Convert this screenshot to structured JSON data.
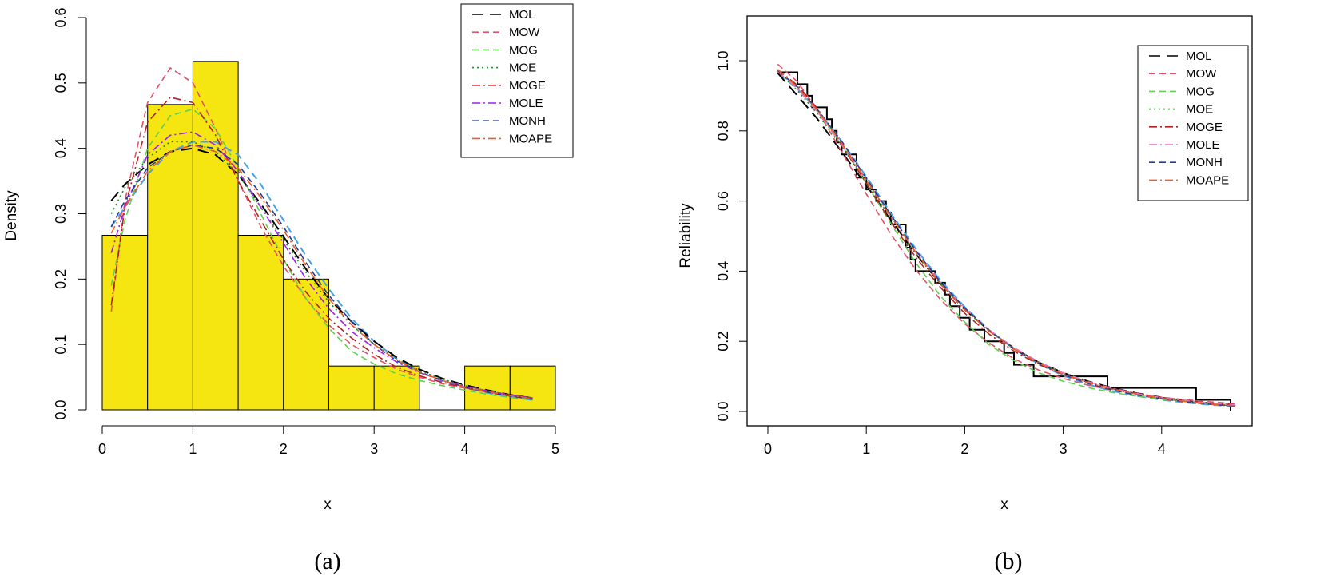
{
  "chart_data": [
    {
      "type": "histogram+line",
      "caption": "(a)",
      "xlabel": "x",
      "ylabel": "Density",
      "xlim": [
        0,
        5
      ],
      "ylim": [
        0,
        0.6
      ],
      "xticks": [
        "0",
        "1",
        "2",
        "3",
        "4",
        "5"
      ],
      "yticks": [
        "0.0",
        "0.1",
        "0.2",
        "0.3",
        "0.4",
        "0.5",
        "0.6"
      ],
      "bar_color": "#f5e612",
      "bins": [
        {
          "x0": 0.0,
          "x1": 0.5,
          "value": 0.267
        },
        {
          "x0": 0.5,
          "x1": 1.0,
          "value": 0.467
        },
        {
          "x0": 1.0,
          "x1": 1.5,
          "value": 0.533
        },
        {
          "x0": 1.5,
          "x1": 2.0,
          "value": 0.267
        },
        {
          "x0": 2.0,
          "x1": 2.5,
          "value": 0.2
        },
        {
          "x0": 2.5,
          "x1": 3.0,
          "value": 0.067
        },
        {
          "x0": 3.0,
          "x1": 3.5,
          "value": 0.067
        },
        {
          "x0": 3.5,
          "x1": 4.0,
          "value": 0.0
        },
        {
          "x0": 4.0,
          "x1": 4.5,
          "value": 0.067
        },
        {
          "x0": 4.5,
          "x1": 5.0,
          "value": 0.067
        }
      ],
      "x": [
        0.1,
        0.25,
        0.5,
        0.75,
        1.0,
        1.25,
        1.5,
        1.75,
        2.0,
        2.25,
        2.5,
        2.75,
        3.0,
        3.25,
        3.5,
        3.75,
        4.0,
        4.25,
        4.5,
        4.75
      ],
      "series": [
        {
          "name": "MOL",
          "color": "#000000",
          "dash": "14 8",
          "values": [
            0.32,
            0.345,
            0.375,
            0.395,
            0.4,
            0.39,
            0.36,
            0.315,
            0.265,
            0.215,
            0.17,
            0.135,
            0.105,
            0.08,
            0.062,
            0.048,
            0.038,
            0.03,
            0.023,
            0.018
          ]
        },
        {
          "name": "MOW",
          "color": "#df536b",
          "dash": "8 5",
          "values": [
            0.15,
            0.32,
            0.47,
            0.523,
            0.5,
            0.43,
            0.35,
            0.28,
            0.22,
            0.17,
            0.13,
            0.1,
            0.08,
            0.062,
            0.05,
            0.04,
            0.033,
            0.027,
            0.022,
            0.018
          ]
        },
        {
          "name": "MOG",
          "color": "#61d04f",
          "dash": "8 5",
          "values": [
            0.19,
            0.29,
            0.4,
            0.45,
            0.46,
            0.43,
            0.37,
            0.3,
            0.23,
            0.17,
            0.125,
            0.09,
            0.07,
            0.055,
            0.045,
            0.037,
            0.03,
            0.024,
            0.019,
            0.015
          ]
        },
        {
          "name": "MOE",
          "color": "#228b22",
          "dash": "2 4",
          "values": [
            0.3,
            0.34,
            0.385,
            0.41,
            0.41,
            0.395,
            0.36,
            0.31,
            0.26,
            0.21,
            0.165,
            0.13,
            0.1,
            0.078,
            0.06,
            0.047,
            0.037,
            0.029,
            0.022,
            0.017
          ]
        },
        {
          "name": "MOGE",
          "color": "#b22222",
          "dash": "10 4 2 4",
          "values": [
            0.16,
            0.31,
            0.44,
            0.478,
            0.47,
            0.42,
            0.35,
            0.29,
            0.23,
            0.18,
            0.14,
            0.11,
            0.085,
            0.065,
            0.052,
            0.042,
            0.034,
            0.028,
            0.022,
            0.018
          ]
        },
        {
          "name": "MOLE",
          "color": "#a020f0",
          "dash": "10 4 2 4",
          "values": [
            0.24,
            0.31,
            0.39,
            0.42,
            0.425,
            0.405,
            0.365,
            0.31,
            0.255,
            0.2,
            0.155,
            0.12,
            0.095,
            0.073,
            0.057,
            0.045,
            0.036,
            0.029,
            0.023,
            0.018
          ]
        },
        {
          "name": "MONH",
          "color": "#1f3f99",
          "dash": "8 5",
          "values": [
            0.28,
            0.32,
            0.37,
            0.395,
            0.405,
            0.4,
            0.375,
            0.33,
            0.28,
            0.225,
            0.175,
            0.135,
            0.1,
            0.075,
            0.058,
            0.045,
            0.035,
            0.027,
            0.021,
            0.016
          ]
        },
        {
          "name": "MOAPE",
          "color": "#f15a22",
          "dash": "10 4 2 4",
          "values": [
            0.27,
            0.31,
            0.365,
            0.395,
            0.405,
            0.395,
            0.37,
            0.325,
            0.275,
            0.22,
            0.17,
            0.13,
            0.1,
            0.076,
            0.058,
            0.045,
            0.035,
            0.028,
            0.022,
            0.017
          ]
        }
      ],
      "extra_curve": {
        "name": "light-blue",
        "color": "#4aa3df",
        "dash": "10 6",
        "values": [
          0.28,
          0.31,
          0.36,
          0.395,
          0.41,
          0.41,
          0.39,
          0.345,
          0.29,
          0.235,
          0.185,
          0.14,
          0.105,
          0.078,
          0.058,
          0.044,
          0.034,
          0.026,
          0.02,
          0.015
        ]
      },
      "legend": [
        "MOL",
        "MOW",
        "MOG",
        "MOE",
        "MOGE",
        "MOLE",
        "MONH",
        "MOAPE"
      ],
      "legend_position": "top-right"
    },
    {
      "type": "step+line",
      "caption": "(b)",
      "xlabel": "x",
      "ylabel": "Reliability",
      "xlim": [
        0,
        4.75
      ],
      "ylim": [
        0,
        1.0
      ],
      "xticks": [
        "0",
        "1",
        "2",
        "3",
        "4"
      ],
      "yticks": [
        "0.0",
        "0.2",
        "0.4",
        "0.6",
        "0.8",
        "1.0"
      ],
      "empirical": {
        "x": [
          0.1,
          0.3,
          0.4,
          0.45,
          0.5,
          0.6,
          0.65,
          0.7,
          0.75,
          0.9,
          1.0,
          1.1,
          1.2,
          1.25,
          1.4,
          1.45,
          1.5,
          1.7,
          1.8,
          1.85,
          1.95,
          2.05,
          2.2,
          2.4,
          2.5,
          2.6,
          2.7,
          3.0,
          3.45,
          4.35,
          4.7
        ],
        "y": [
          0.967,
          0.933,
          0.9,
          0.867,
          0.867,
          0.833,
          0.8,
          0.767,
          0.733,
          0.667,
          0.633,
          0.6,
          0.567,
          0.533,
          0.467,
          0.433,
          0.4,
          0.367,
          0.333,
          0.3,
          0.267,
          0.233,
          0.2,
          0.167,
          0.133,
          0.133,
          0.1,
          0.1,
          0.067,
          0.033,
          0.0
        ]
      },
      "x": [
        0.1,
        0.3,
        0.5,
        0.75,
        1.0,
        1.25,
        1.5,
        1.75,
        2.0,
        2.25,
        2.5,
        2.75,
        3.0,
        3.25,
        3.5,
        3.75,
        4.0,
        4.25,
        4.5,
        4.75
      ],
      "series": [
        {
          "name": "MOL",
          "color": "#000000",
          "dash": "14 8",
          "values": [
            0.965,
            0.9,
            0.835,
            0.74,
            0.645,
            0.545,
            0.45,
            0.365,
            0.29,
            0.23,
            0.18,
            0.14,
            0.11,
            0.086,
            0.067,
            0.052,
            0.04,
            0.03,
            0.022,
            0.016
          ]
        },
        {
          "name": "MOW",
          "color": "#df536b",
          "dash": "8 5",
          "values": [
            0.99,
            0.94,
            0.86,
            0.74,
            0.62,
            0.505,
            0.405,
            0.32,
            0.25,
            0.195,
            0.15,
            0.118,
            0.094,
            0.075,
            0.06,
            0.049,
            0.04,
            0.033,
            0.027,
            0.022
          ]
        },
        {
          "name": "MOG",
          "color": "#61d04f",
          "dash": "8 5",
          "values": [
            0.97,
            0.925,
            0.86,
            0.76,
            0.65,
            0.535,
            0.425,
            0.33,
            0.255,
            0.19,
            0.145,
            0.11,
            0.086,
            0.068,
            0.054,
            0.043,
            0.035,
            0.028,
            0.022,
            0.017
          ]
        },
        {
          "name": "MOE",
          "color": "#228b22",
          "dash": "2 4",
          "values": [
            0.97,
            0.915,
            0.85,
            0.755,
            0.655,
            0.55,
            0.45,
            0.365,
            0.29,
            0.23,
            0.18,
            0.14,
            0.108,
            0.083,
            0.064,
            0.05,
            0.038,
            0.029,
            0.022,
            0.017
          ]
        },
        {
          "name": "MOGE",
          "color": "#b22222",
          "dash": "10 4 2 4",
          "values": [
            0.975,
            0.93,
            0.865,
            0.76,
            0.65,
            0.54,
            0.44,
            0.355,
            0.28,
            0.22,
            0.172,
            0.134,
            0.105,
            0.083,
            0.065,
            0.051,
            0.04,
            0.031,
            0.024,
            0.019
          ]
        },
        {
          "name": "MOLE",
          "color": "#e377c2",
          "dash": "10 4 2 4",
          "values": [
            0.97,
            0.92,
            0.855,
            0.76,
            0.66,
            0.555,
            0.455,
            0.37,
            0.295,
            0.232,
            0.182,
            0.142,
            0.11,
            0.085,
            0.066,
            0.051,
            0.039,
            0.03,
            0.023,
            0.018
          ]
        },
        {
          "name": "MONH",
          "color": "#1f3f99",
          "dash": "8 5",
          "values": [
            0.972,
            0.925,
            0.862,
            0.77,
            0.665,
            0.56,
            0.46,
            0.37,
            0.295,
            0.23,
            0.178,
            0.137,
            0.105,
            0.08,
            0.061,
            0.047,
            0.036,
            0.027,
            0.02,
            0.015
          ]
        },
        {
          "name": "MOAPE",
          "color": "#f15a22",
          "dash": "10 4 2 4",
          "values": [
            0.975,
            0.925,
            0.86,
            0.765,
            0.66,
            0.555,
            0.455,
            0.365,
            0.29,
            0.228,
            0.178,
            0.138,
            0.106,
            0.082,
            0.063,
            0.049,
            0.037,
            0.028,
            0.021,
            0.016
          ]
        }
      ],
      "extra_curve": {
        "name": "light-blue",
        "color": "#4aa3df",
        "dash": "10 6",
        "values": [
          0.965,
          0.92,
          0.86,
          0.77,
          0.67,
          0.565,
          0.465,
          0.375,
          0.298,
          0.232,
          0.178,
          0.135,
          0.102,
          0.077,
          0.058,
          0.044,
          0.033,
          0.025,
          0.019,
          0.014
        ]
      },
      "legend": [
        "MOL",
        "MOW",
        "MOG",
        "MOE",
        "MOGE",
        "MOLE",
        "MONH",
        "MOAPE"
      ],
      "legend_position": "top-right"
    }
  ]
}
